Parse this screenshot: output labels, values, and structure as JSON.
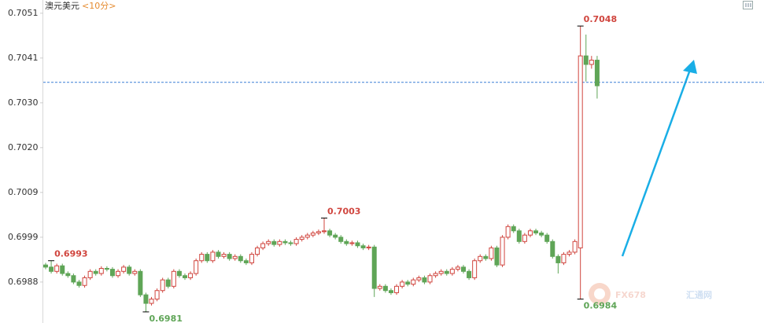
{
  "chart_data": {
    "type": "candlestick",
    "title": "澳元美元",
    "subtitle": "<10分>",
    "watermark": [
      "FX678",
      "汇通网"
    ],
    "ylim": [
      0.69784,
      0.70541
    ],
    "yticks": [
      0.7051,
      {
        "value": 0.70405,
        "label": "0.7041"
      },
      {
        "value": 0.703,
        "label": "0.7030"
      },
      {
        "value": 0.70195,
        "label": "0.7020"
      },
      {
        "value": 0.7009,
        "label": "0.7009"
      },
      {
        "value": 0.69985,
        "label": "0.6999"
      },
      {
        "value": 0.6988,
        "label": "0.6988"
      }
    ],
    "up_color": "#d0453e",
    "down_color": "#5fa557",
    "reference_line": 0.70348,
    "reference_color": "#3a7fd5",
    "high_marks": [
      0.6993,
      0.7003,
      0.7048
    ],
    "low_marks": [
      0.6981,
      0.6984
    ],
    "open": [
      0.6992,
      0.69915,
      0.69905,
      0.69918,
      0.699,
      0.69895,
      0.6988,
      0.69872,
      0.6989,
      0.69905,
      0.699,
      0.69912,
      0.6991,
      0.69895,
      0.69905,
      0.69915,
      0.699,
      0.69905,
      0.6985,
      0.6983,
      0.6984,
      0.6986,
      0.69885,
      0.6987,
      0.69905,
      0.69895,
      0.6989,
      0.699,
      0.6993,
      0.69945,
      0.6993,
      0.6995,
      0.6994,
      0.69945,
      0.69935,
      0.6994,
      0.6993,
      0.69925,
      0.69945,
      0.6996,
      0.6997,
      0.69975,
      0.69968,
      0.69975,
      0.69972,
      0.6997,
      0.6998,
      0.69985,
      0.6999,
      0.69995,
      0.69998,
      0.7,
      0.6999,
      0.69985,
      0.69975,
      0.6997,
      0.69972,
      0.69965,
      0.6996,
      0.69962,
      0.69865,
      0.6987,
      0.6986,
      0.69855,
      0.6987,
      0.6988,
      0.69875,
      0.69885,
      0.6989,
      0.6988,
      0.69895,
      0.699,
      0.69905,
      0.699,
      0.6991,
      0.69915,
      0.69905,
      0.6989,
      0.6993,
      0.6994,
      0.69935,
      0.6996,
      0.6992,
      0.69985,
      0.7001,
      0.7,
      0.69975,
      0.6999,
      0.7,
      0.69995,
      0.6999,
      0.69975,
      0.6994,
      0.69925,
      0.69945,
      0.6995,
      0.6996,
      0.7041,
      0.7039,
      0.704
    ],
    "high": [
      0.69925,
      0.6993,
      0.69923,
      0.69923,
      0.69905,
      0.699,
      0.69885,
      0.69895,
      0.6991,
      0.6991,
      0.69917,
      0.69917,
      0.69915,
      0.6991,
      0.6992,
      0.6992,
      0.6991,
      0.6991,
      0.69855,
      0.69845,
      0.69865,
      0.6989,
      0.6989,
      0.6991,
      0.6991,
      0.699,
      0.69905,
      0.69935,
      0.6995,
      0.6995,
      0.69955,
      0.69955,
      0.6995,
      0.6995,
      0.69945,
      0.69945,
      0.69935,
      0.6995,
      0.69965,
      0.69975,
      0.6998,
      0.6998,
      0.6998,
      0.6998,
      0.69977,
      0.69985,
      0.6999,
      0.69995,
      0.7,
      0.70003,
      0.7003,
      0.70005,
      0.69995,
      0.6999,
      0.6998,
      0.69977,
      0.69977,
      0.6997,
      0.69967,
      0.69967,
      0.69875,
      0.69875,
      0.69865,
      0.69875,
      0.69885,
      0.69885,
      0.6989,
      0.69895,
      0.69895,
      0.699,
      0.69905,
      0.6991,
      0.6991,
      0.69915,
      0.6992,
      0.6992,
      0.6991,
      0.69935,
      0.69945,
      0.69945,
      0.69965,
      0.69965,
      0.6999,
      0.70015,
      0.70015,
      0.70005,
      0.69995,
      0.70005,
      0.70005,
      0.7,
      0.69995,
      0.6998,
      0.69945,
      0.6995,
      0.69955,
      0.6998,
      0.7048,
      0.7046,
      0.7041,
      0.7041
    ],
    "low": [
      0.6991,
      0.699,
      0.699,
      0.69895,
      0.6989,
      0.69875,
      0.69867,
      0.69867,
      0.69885,
      0.69895,
      0.69895,
      0.69905,
      0.6989,
      0.6989,
      0.699,
      0.69895,
      0.69895,
      0.69845,
      0.6981,
      0.69825,
      0.69835,
      0.69855,
      0.69865,
      0.69865,
      0.6989,
      0.69885,
      0.69885,
      0.69895,
      0.69925,
      0.69925,
      0.69925,
      0.69935,
      0.69935,
      0.6993,
      0.6993,
      0.69925,
      0.6992,
      0.6992,
      0.6994,
      0.69955,
      0.69965,
      0.69963,
      0.69963,
      0.69967,
      0.69965,
      0.69965,
      0.69975,
      0.6998,
      0.69985,
      0.6999,
      0.69993,
      0.69985,
      0.6998,
      0.6997,
      0.69965,
      0.69965,
      0.6996,
      0.69955,
      0.69955,
      0.69845,
      0.6986,
      0.69855,
      0.6985,
      0.6985,
      0.69865,
      0.6987,
      0.6987,
      0.6988,
      0.69875,
      0.69875,
      0.6989,
      0.69895,
      0.69895,
      0.69895,
      0.69905,
      0.699,
      0.69885,
      0.69885,
      0.69925,
      0.6993,
      0.6993,
      0.69915,
      0.69915,
      0.6998,
      0.69995,
      0.6997,
      0.6997,
      0.69985,
      0.6999,
      0.69985,
      0.6997,
      0.69935,
      0.699,
      0.6992,
      0.6994,
      0.69945,
      0.6984,
      0.7035,
      0.7038,
      0.7031
    ],
    "close": [
      0.69915,
      0.69905,
      0.69918,
      0.699,
      0.69895,
      0.6988,
      0.69872,
      0.6989,
      0.69905,
      0.699,
      0.69912,
      0.6991,
      0.69895,
      0.69905,
      0.69915,
      0.699,
      0.69905,
      0.6985,
      0.6983,
      0.6984,
      0.6986,
      0.69885,
      0.6987,
      0.69905,
      0.69895,
      0.6989,
      0.699,
      0.6993,
      0.69945,
      0.6993,
      0.6995,
      0.6994,
      0.69945,
      0.69935,
      0.6994,
      0.6993,
      0.69925,
      0.69945,
      0.6996,
      0.6997,
      0.69975,
      0.69968,
      0.69975,
      0.69972,
      0.6997,
      0.6998,
      0.69985,
      0.6999,
      0.69995,
      0.69998,
      0.7,
      0.6999,
      0.69985,
      0.69975,
      0.6997,
      0.69972,
      0.69965,
      0.6996,
      0.69962,
      0.69865,
      0.6987,
      0.6986,
      0.69855,
      0.6987,
      0.6988,
      0.69875,
      0.69885,
      0.6989,
      0.6988,
      0.69895,
      0.699,
      0.69905,
      0.699,
      0.6991,
      0.69915,
      0.69905,
      0.6989,
      0.6993,
      0.6994,
      0.69935,
      0.6996,
      0.6992,
      0.69985,
      0.7001,
      0.7,
      0.69975,
      0.6999,
      0.7,
      0.69995,
      0.6999,
      0.69975,
      0.6994,
      0.69925,
      0.69945,
      0.6995,
      0.69975,
      0.7041,
      0.7039,
      0.704,
      0.7034
    ]
  }
}
